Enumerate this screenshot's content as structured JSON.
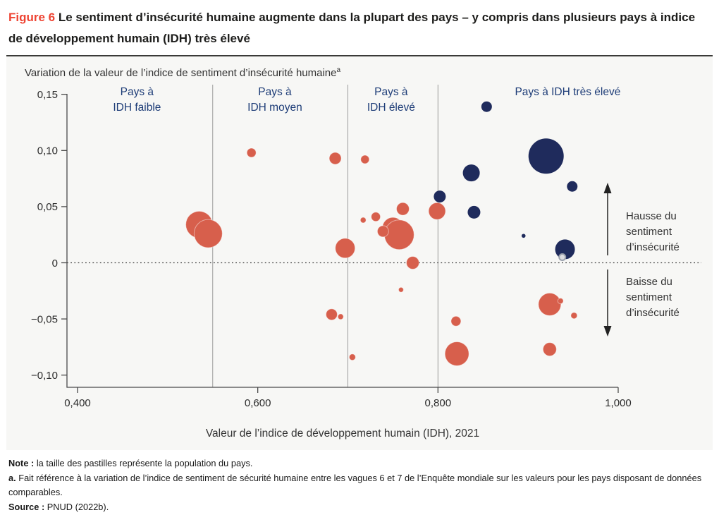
{
  "figure": {
    "label": "Figure 6",
    "title": "Le sentiment d’insécurité humaine augmente dans la plupart des pays – y compris dans plusieurs pays à indice de développement humain (IDH) très élevé"
  },
  "chart_data": {
    "type": "scatter",
    "subtype": "bubble",
    "y_axis_title": "Variation de la valeur de l’indice de sentiment d’insécurité humaine",
    "y_axis_title_superscript": "a",
    "x_axis_title": "Valeur de l’indice de développement humain (IDH), 2021",
    "xlim": [
      0.388,
      1.0
    ],
    "ylim": [
      -0.113,
      0.155
    ],
    "x_ticks": [
      0.4,
      0.6,
      0.8,
      1.0
    ],
    "x_tick_labels": [
      "0,400",
      "0,600",
      "0,800",
      "1,000"
    ],
    "y_ticks": [
      0.15,
      0.1,
      0.05,
      0,
      -0.05,
      -0.1
    ],
    "y_tick_labels": [
      "0,15",
      "0,10",
      "0,05",
      "0",
      "−0,05",
      "−0,10"
    ],
    "zero_line": 0,
    "grid": "off",
    "legend": "none",
    "bubble_size_meaning": "population du pays",
    "category_dividers_hdi": [
      0.55,
      0.7,
      0.8
    ],
    "category_labels": [
      {
        "lines": [
          "Pays à",
          "IDH faible"
        ],
        "hdi_center": 0.466
      },
      {
        "lines": [
          "Pays à",
          "IDH moyen"
        ],
        "hdi_center": 0.619
      },
      {
        "lines": [
          "Pays à",
          "IDH élevé"
        ],
        "hdi_center": 0.748
      },
      {
        "lines": [
          "Pays à IDH très élevé"
        ],
        "hdi_center": 0.944
      }
    ],
    "annotations": {
      "increase": {
        "lines": [
          "Hausse du",
          "sentiment",
          "d’insécurité"
        ]
      },
      "decrease": {
        "lines": [
          "Baisse du",
          "sentiment",
          "d’insécurité"
        ]
      }
    },
    "colors": {
      "red": "#d75f4c",
      "navy": "#1f2b5c",
      "label_navy": "#1d3c77"
    },
    "series": [
      {
        "name": "bulles-rouges",
        "color": "#d75f4c",
        "stroke": "rgba(255,255,255,0.45)",
        "points": [
          [
            0.535,
            0.034,
            19
          ],
          [
            0.545,
            0.026,
            20
          ],
          [
            0.593,
            0.098,
            6.5
          ],
          [
            0.686,
            0.093,
            8.5
          ],
          [
            0.719,
            0.092,
            6
          ],
          [
            0.761,
            0.048,
            9
          ],
          [
            0.75,
            0.031,
            15
          ],
          [
            0.757,
            0.025,
            21
          ],
          [
            0.739,
            0.028,
            8
          ],
          [
            0.731,
            0.041,
            6.5
          ],
          [
            0.717,
            0.038,
            4
          ],
          [
            0.697,
            0.013,
            14
          ],
          [
            0.799,
            0.046,
            12
          ],
          [
            0.772,
            0.0,
            9
          ],
          [
            0.759,
            -0.024,
            3.5
          ],
          [
            0.682,
            -0.046,
            8
          ],
          [
            0.692,
            -0.048,
            4
          ],
          [
            0.705,
            -0.084,
            4.5
          ],
          [
            0.82,
            -0.052,
            7
          ],
          [
            0.821,
            -0.081,
            17
          ],
          [
            0.924,
            -0.037,
            16
          ],
          [
            0.936,
            -0.034,
            4
          ],
          [
            0.951,
            -0.047,
            4.5
          ],
          [
            0.924,
            -0.077,
            9.5
          ]
        ]
      },
      {
        "name": "bulles-bleu-marine",
        "color": "#1f2b5c",
        "stroke": "none",
        "points": [
          [
            0.854,
            0.139,
            7.5
          ],
          [
            0.92,
            0.095,
            25
          ],
          [
            0.837,
            0.08,
            12
          ],
          [
            0.949,
            0.068,
            7.5
          ],
          [
            0.802,
            0.059,
            8.5
          ],
          [
            0.84,
            0.045,
            9
          ],
          [
            0.895,
            0.024,
            2.8
          ],
          [
            0.941,
            0.012,
            14
          ]
        ]
      },
      {
        "name": "bulle-cerclee-grise",
        "color": "#dcdcdf",
        "stroke": "#9aa0ac",
        "stroke_width": 2,
        "points": [
          [
            0.938,
            0.005,
            4.5
          ]
        ]
      }
    ]
  },
  "notes": {
    "note_label": "Note :",
    "note_text": "la taille des pastilles représente la population du pays.",
    "footnote_label": "a.",
    "footnote_text": "Fait référence à la variation de l’indice de sentiment de sécurité humaine entre les vagues 6 et 7 de l’Enquête mondiale sur les valeurs pour les pays disposant de données comparables.",
    "source_label": "Source :",
    "source_text": "PNUD (2022b)."
  }
}
